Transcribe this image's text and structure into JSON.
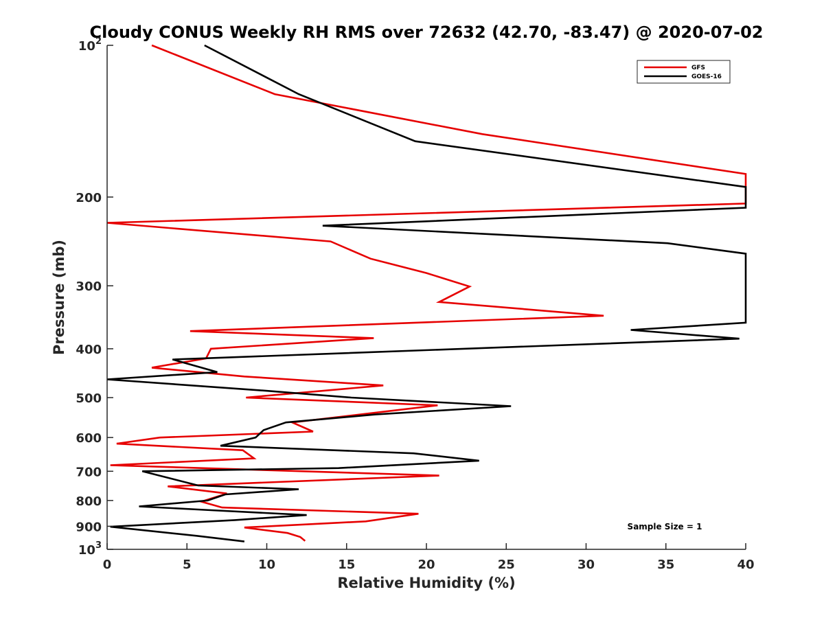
{
  "chart_data": {
    "type": "line",
    "title": "Cloudy CONUS Weekly RH RMS over 72632 (42.70, -83.47) @ 2020-07-02",
    "xlabel": "Relative Humidity (%)",
    "ylabel": "Pressure (mb)",
    "xlim": [
      0,
      40
    ],
    "ylim": [
      100,
      1000
    ],
    "y_scale": "log",
    "y_reversed": true,
    "grid": false,
    "legend_position": "top-right",
    "x_ticks": [
      0,
      5,
      10,
      15,
      20,
      25,
      30,
      35,
      40
    ],
    "x_tick_labels": [
      "0",
      "5",
      "10",
      "15",
      "20",
      "25",
      "30",
      "35",
      "40"
    ],
    "y_ticks": [
      100,
      200,
      300,
      400,
      500,
      600,
      700,
      800,
      900,
      1000
    ],
    "y_tick_labels": [
      {
        "base": "10",
        "exp": "2"
      },
      {
        "base": "200",
        "exp": ""
      },
      {
        "base": "300",
        "exp": ""
      },
      {
        "base": "400",
        "exp": ""
      },
      {
        "base": "500",
        "exp": ""
      },
      {
        "base": "600",
        "exp": ""
      },
      {
        "base": "700",
        "exp": ""
      },
      {
        "base": "800",
        "exp": ""
      },
      {
        "base": "900",
        "exp": ""
      },
      {
        "base": "10",
        "exp": "3"
      }
    ],
    "annotation": "Sample Size = 1",
    "series": [
      {
        "name": "GFS",
        "color": "#e60000",
        "points": [
          [
            2.8,
            100
          ],
          [
            10.5,
            125
          ],
          [
            23.5,
            150
          ],
          [
            40,
            180
          ],
          [
            40,
            206
          ],
          [
            0,
            225
          ],
          [
            14,
            245
          ],
          [
            16.5,
            265
          ],
          [
            20,
            283
          ],
          [
            22.7,
            301
          ],
          [
            20.8,
            323
          ],
          [
            31.1,
            344
          ],
          [
            5.2,
            369
          ],
          [
            16.7,
            381
          ],
          [
            6.5,
            400
          ],
          [
            6.2,
            418
          ],
          [
            2.8,
            436
          ],
          [
            8.6,
            454
          ],
          [
            17.3,
            473
          ],
          [
            8.7,
            500
          ],
          [
            20.7,
            518
          ],
          [
            11.6,
            560
          ],
          [
            12.9,
            584
          ],
          [
            3.3,
            600
          ],
          [
            0.6,
            617
          ],
          [
            8.5,
            636
          ],
          [
            9.2,
            660
          ],
          [
            0.2,
            681
          ],
          [
            20.8,
            714
          ],
          [
            3.8,
            750
          ],
          [
            7.5,
            775
          ],
          [
            5.9,
            804
          ],
          [
            7.2,
            826
          ],
          [
            19.5,
            850
          ],
          [
            16.2,
            880
          ],
          [
            8.6,
            905
          ],
          [
            11.3,
            928
          ],
          [
            12.1,
            945
          ],
          [
            12.4,
            962
          ]
        ]
      },
      {
        "name": "GOES-16",
        "color": "#000000",
        "points": [
          [
            6.1,
            100
          ],
          [
            12,
            125
          ],
          [
            19.3,
            155
          ],
          [
            40,
            191
          ],
          [
            40,
            210
          ],
          [
            13.5,
            228
          ],
          [
            35.1,
            247
          ],
          [
            40,
            259
          ],
          [
            40,
            355
          ],
          [
            32.8,
            367
          ],
          [
            39.6,
            382
          ],
          [
            4.1,
            420
          ],
          [
            6.9,
            445
          ],
          [
            0,
            460
          ],
          [
            10.1,
            485
          ],
          [
            15.3,
            500
          ],
          [
            25.3,
            520
          ],
          [
            16.8,
            540
          ],
          [
            11.2,
            560
          ],
          [
            9.8,
            580
          ],
          [
            9.3,
            600
          ],
          [
            7.1,
            623
          ],
          [
            19.2,
            645
          ],
          [
            23.3,
            667
          ],
          [
            14.5,
            690
          ],
          [
            2.2,
            700
          ],
          [
            5.7,
            747
          ],
          [
            12,
            760
          ],
          [
            7.4,
            778
          ],
          [
            6.3,
            800
          ],
          [
            2,
            822
          ],
          [
            6.1,
            835
          ],
          [
            12.5,
            855
          ],
          [
            8,
            875
          ],
          [
            0.2,
            902
          ],
          [
            5.6,
            940
          ],
          [
            8.6,
            965
          ]
        ]
      }
    ]
  }
}
